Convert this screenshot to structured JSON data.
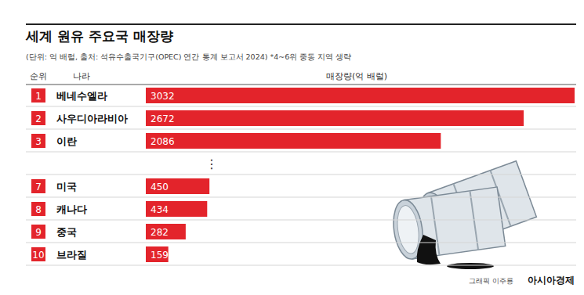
{
  "chart_data": {
    "type": "bar",
    "orientation": "horizontal",
    "title": "세계 원유 주요국 매장량",
    "subtitle": "(단위: 억 배럴, 출처: 석유수출국기구(OPEC) 연간 통계 보고서 2024) *4~6위 중동 지역 생략",
    "rank_header": "순위",
    "category_header": "나라",
    "value_header": "매장량(억 배럴)",
    "ranks": [
      1,
      2,
      3,
      7,
      8,
      9,
      10
    ],
    "categories": [
      "베네수엘라",
      "사우디아라비아",
      "이란",
      "미국",
      "캐나다",
      "중국",
      "브라질"
    ],
    "values": [
      3032,
      2672,
      2086,
      450,
      434,
      282,
      159
    ],
    "color": "#e3242b",
    "xlim": [
      0,
      3032
    ],
    "data_labels": true,
    "tick_labels": false,
    "grid": false,
    "ellipsis": "⋮",
    "credit": "그래픽 이주룡",
    "publisher": "아시아경제"
  }
}
